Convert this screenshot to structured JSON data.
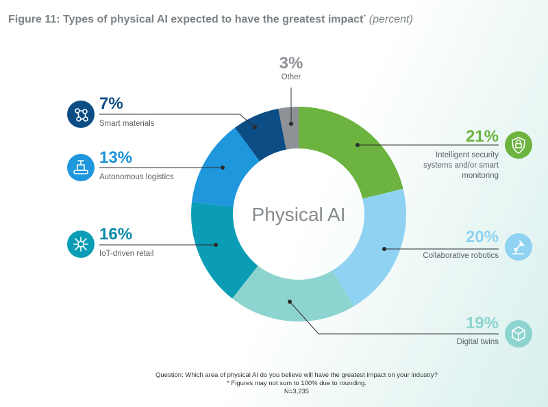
{
  "title": {
    "main": "Figure 11: Types of physical AI expected to have the greatest impact",
    "star": "*",
    "unit": "(percent)"
  },
  "chart_data": {
    "type": "pie",
    "center_label": "Physical AI",
    "slices": [
      {
        "label": "Intelligent security systems and/or smart monitoring",
        "lines": [
          "Intelligent security",
          "systems and/or smart",
          "monitoring"
        ],
        "value": 21,
        "display": "21%",
        "color": "#6cb33f",
        "text_color": "#6cb33f",
        "icon": "shield-lock-icon"
      },
      {
        "label": "Collaborative robotics",
        "lines": [
          "Collaborative robotics"
        ],
        "value": 20,
        "display": "20%",
        "color": "#8fd2f2",
        "text_color": "#8fd2f2",
        "icon": "robot-arm-icon"
      },
      {
        "label": "Digital twins",
        "lines": [
          "Digital twins"
        ],
        "value": 19,
        "display": "19%",
        "color": "#8dd3cf",
        "text_color": "#8dd3cf",
        "icon": "cube-icon"
      },
      {
        "label": "IoT-driven retail",
        "lines": [
          "IoT-driven retail"
        ],
        "value": 16,
        "display": "16%",
        "color": "#0b9db5",
        "text_color": "#0a8aa8",
        "icon": "iot-network-icon"
      },
      {
        "label": "Autonomous logistics",
        "lines": [
          "Autonomous logistics"
        ],
        "value": 13,
        "display": "13%",
        "color": "#1f97dc",
        "text_color": "#1d94d8",
        "icon": "conveyor-icon"
      },
      {
        "label": "Smart materials",
        "lines": [
          "Smart materials"
        ],
        "value": 7,
        "display": "7%",
        "color": "#0c4d85",
        "text_color": "#0c4d85",
        "icon": "molecule-icon"
      },
      {
        "label": "Other",
        "lines": [
          "Other"
        ],
        "value": 3,
        "display": "3%",
        "color": "#8e9296",
        "text_color": "#8e9296",
        "icon": ""
      }
    ]
  },
  "footer": {
    "question": "Question: Which area of physical AI do you believe will have the greatest impact on your industry?",
    "note": "* Figures may not sum to 100% due to rounding.",
    "n": "N=3,235"
  }
}
